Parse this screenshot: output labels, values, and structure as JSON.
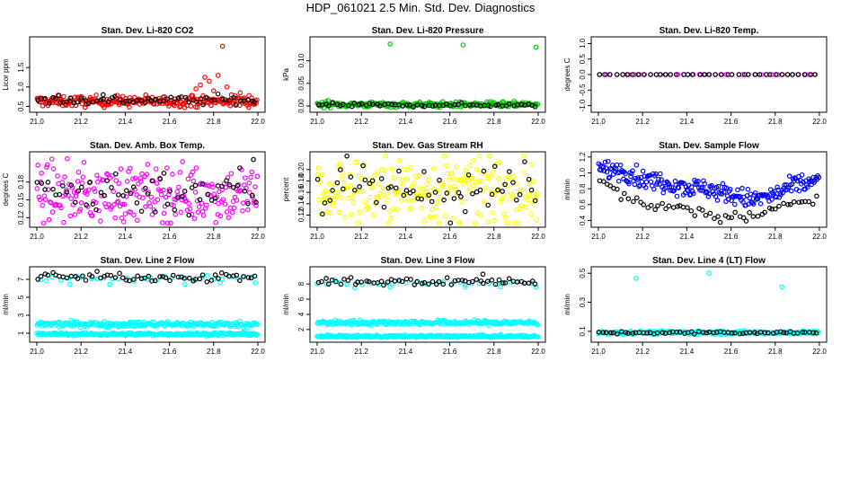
{
  "figure": {
    "title": "HDP_061021  2.5 Min. Std. Dev. Diagnostics"
  },
  "chart_data": [
    {
      "type": "scatter",
      "title": "Stan. Dev. Li-820 CO2",
      "ylabel": "Licor ppm",
      "xlim": [
        21.0,
        22.0
      ],
      "ylim": [
        0.44,
        2.2
      ],
      "xticks": [
        "21.0",
        "21.2",
        "21.4",
        "21.6",
        "21.8",
        "22.0"
      ],
      "yticks": [
        "0.5",
        "1.0",
        "1.5"
      ],
      "series": [
        {
          "name": "red",
          "color": "#ff0000",
          "baseline": 0.63,
          "jitter": 0.07,
          "points": [
            [
              21.72,
              0.95
            ],
            [
              21.74,
              1.05
            ],
            [
              21.76,
              1.25
            ],
            [
              21.78,
              1.15
            ],
            [
              21.8,
              0.9
            ],
            [
              21.82,
              1.3
            ],
            [
              21.84,
              2.05
            ],
            [
              21.86,
              1.0
            ],
            [
              21.88,
              0.8
            ],
            [
              21.92,
              0.85
            ],
            [
              21.7,
              0.78
            ],
            [
              21.96,
              0.78
            ]
          ]
        },
        {
          "name": "black",
          "color": "#000000",
          "baseline": 0.66,
          "jitter": 0.06,
          "points": [
            [
              21.3,
              0.8
            ],
            [
              21.1,
              0.78
            ]
          ]
        }
      ]
    },
    {
      "type": "scatter",
      "title": "Stan. Dev. Li-820 Pressure",
      "ylabel": "kPa",
      "xlim": [
        21.0,
        22.0
      ],
      "ylim": [
        -0.006,
        0.145
      ],
      "xticks": [
        "21.0",
        "21.2",
        "21.4",
        "21.6",
        "21.8",
        "22.0"
      ],
      "yticks": [
        "0.00",
        "0.05",
        "0.10"
      ],
      "series": [
        {
          "name": "green",
          "color": "#00c800",
          "baseline": 0.003,
          "jitter": 0.003,
          "points": [
            [
              21.33,
              0.137
            ],
            [
              21.66,
              0.135
            ],
            [
              21.99,
              0.13
            ],
            [
              21.04,
              0.01
            ],
            [
              21.05,
              0.012
            ]
          ]
        },
        {
          "name": "black",
          "color": "#000000",
          "baseline": 0.002,
          "jitter": 0.002,
          "points": []
        }
      ]
    },
    {
      "type": "scatter",
      "title": "Stan. Dev. Li-820 Temp.",
      "ylabel": "degrees C",
      "xlim": [
        21.0,
        22.0
      ],
      "ylim": [
        -1.1,
        1.1
      ],
      "xticks": [
        "21.0",
        "21.2",
        "21.4",
        "21.6",
        "21.8",
        "22.0"
      ],
      "yticks": [
        "-1.0",
        "-0.5",
        "0.0",
        "0.5",
        "1.0"
      ],
      "series": [
        {
          "name": "magenta",
          "color": "#ff00ff",
          "baseline": 0.0,
          "jitter": 0.0,
          "points": []
        },
        {
          "name": "black",
          "color": "#000000",
          "baseline": 0.0,
          "jitter": 0.0,
          "points": []
        }
      ]
    },
    {
      "type": "scatter",
      "title": "Stan. Dev. Amb. Box Temp.",
      "ylabel": "degrees C",
      "xlim": [
        21.0,
        22.0
      ],
      "ylim": [
        0.11,
        0.225
      ],
      "xticks": [
        "21.0",
        "21.2",
        "21.4",
        "21.6",
        "21.8",
        "22.0"
      ],
      "yticks": [
        "0.12",
        "0.15",
        "0.18"
      ],
      "series": [
        {
          "name": "magenta",
          "color": "#ff00ff",
          "baseline": 0.16,
          "jitter": 0.024,
          "points": []
        },
        {
          "name": "black",
          "color": "#000000",
          "baseline": 0.165,
          "jitter": 0.02,
          "points": [
            [
              21.98,
              0.218
            ]
          ]
        }
      ]
    },
    {
      "type": "scatter",
      "title": "Stan. Dev. Gas Stream RH",
      "ylabel": "percent",
      "xlim": [
        21.0,
        22.0
      ],
      "ylim": [
        0.105,
        0.225
      ],
      "xticks": [
        "21.0",
        "21.2",
        "21.4",
        "21.6",
        "21.8",
        "22.0"
      ],
      "yticks": [
        "0.12",
        "0.14",
        "0.16",
        "0.18",
        "0.20"
      ],
      "series": [
        {
          "name": "yellow",
          "color": "#ffff00",
          "baseline": 0.163,
          "jitter": 0.03,
          "points": []
        },
        {
          "name": "black",
          "color": "#000000",
          "baseline": 0.162,
          "jitter": 0.025,
          "points": []
        }
      ]
    },
    {
      "type": "scatter",
      "title": "Stan. Dev. Sample Flow",
      "ylabel": "ml/min",
      "xlim": [
        21.0,
        22.0
      ],
      "ylim": [
        0.36,
        1.22
      ],
      "xticks": [
        "21.0",
        "21.2",
        "21.4",
        "21.6",
        "21.8",
        "22.0"
      ],
      "yticks": [
        "0.4",
        "0.6",
        "0.8",
        "1.0",
        "1.2"
      ],
      "series": [
        {
          "name": "blue",
          "color": "#0000ff",
          "baseline": 0.0,
          "jitter": 0.0,
          "profile": [
            [
              21.0,
              1.05
            ],
            [
              21.1,
              1.04
            ],
            [
              21.2,
              0.92
            ],
            [
              21.3,
              0.88
            ],
            [
              21.4,
              0.82
            ],
            [
              21.5,
              0.8
            ],
            [
              21.6,
              0.72
            ],
            [
              21.7,
              0.66
            ],
            [
              21.8,
              0.72
            ],
            [
              21.9,
              0.86
            ],
            [
              22.0,
              0.9
            ]
          ],
          "spread": 0.06,
          "points": []
        },
        {
          "name": "black",
          "color": "#000000",
          "baseline": 0.0,
          "jitter": 0.0,
          "profile": [
            [
              21.0,
              0.95
            ],
            [
              21.1,
              0.72
            ],
            [
              21.2,
              0.6
            ],
            [
              21.3,
              0.58
            ],
            [
              21.4,
              0.52
            ],
            [
              21.5,
              0.47
            ],
            [
              21.6,
              0.44
            ],
            [
              21.7,
              0.46
            ],
            [
              21.8,
              0.58
            ],
            [
              21.9,
              0.64
            ],
            [
              22.0,
              0.62
            ]
          ],
          "spread": 0.03,
          "points": []
        }
      ]
    },
    {
      "type": "scatter",
      "title": "Stan. Dev. Line 2 Flow",
      "ylabel": "ml/min",
      "xlim": [
        21.0,
        22.0
      ],
      "ylim": [
        0.4,
        8.0
      ],
      "xticks": [
        "21.0",
        "21.2",
        "21.4",
        "21.6",
        "21.8",
        "22.0"
      ],
      "yticks": [
        "1",
        "3",
        "5",
        "7"
      ],
      "series": [
        {
          "name": "cyan-upper",
          "color": "#00ffff",
          "baseline": 7.1,
          "jitter": 0.15,
          "points": [
            [
              21.15,
              6.45
            ],
            [
              21.33,
              6.45
            ],
            [
              21.67,
              6.45
            ],
            [
              21.83,
              6.6
            ],
            [
              21.99,
              6.6
            ],
            [
              21.5,
              7.0
            ]
          ]
        },
        {
          "name": "cyan-mid",
          "color": "#00ffff",
          "baseline": 2.0,
          "jitter": 0.15,
          "points": []
        },
        {
          "name": "cyan-low",
          "color": "#00ffff",
          "baseline": 0.9,
          "jitter": 0.08,
          "points": []
        },
        {
          "name": "black",
          "color": "#000000",
          "baseline": 7.25,
          "jitter": 0.25,
          "points": []
        }
      ]
    },
    {
      "type": "scatter",
      "title": "Stan. Dev. Line 3 Flow",
      "ylabel": "ml/min",
      "xlim": [
        21.0,
        22.0
      ],
      "ylim": [
        0.8,
        9.8
      ],
      "xticks": [
        "21.0",
        "21.2",
        "21.4",
        "21.6",
        "21.8",
        "22.0"
      ],
      "yticks": [
        "2",
        "4",
        "6",
        "8"
      ],
      "series": [
        {
          "name": "cyan-upper",
          "color": "#00ffff",
          "baseline": 8.1,
          "jitter": 0.15,
          "points": [
            [
              21.17,
              7.5
            ],
            [
              21.33,
              7.6
            ],
            [
              21.67,
              7.6
            ],
            [
              21.83,
              7.6
            ],
            [
              21.99,
              7.6
            ]
          ]
        },
        {
          "name": "cyan-mid",
          "color": "#00ffff",
          "baseline": 2.9,
          "jitter": 0.15,
          "points": []
        },
        {
          "name": "cyan-low",
          "color": "#00ffff",
          "baseline": 1.1,
          "jitter": 0.08,
          "points": []
        },
        {
          "name": "black",
          "color": "#000000",
          "baseline": 8.3,
          "jitter": 0.25,
          "points": [
            [
              21.75,
              9.3
            ]
          ]
        }
      ]
    },
    {
      "type": "scatter",
      "title": "Stan. Dev. Line 4 (LT) Flow",
      "ylabel": "ml/min",
      "xlim": [
        21.0,
        22.0
      ],
      "ylim": [
        0.05,
        0.52
      ],
      "xticks": [
        "21.0",
        "21.2",
        "21.4",
        "21.6",
        "21.8",
        "22.0"
      ],
      "yticks": [
        "0.1",
        "0.3",
        "0.5"
      ],
      "series": [
        {
          "name": "cyan",
          "color": "#00ffff",
          "baseline": 0.092,
          "jitter": 0.006,
          "points": [
            [
              21.17,
              0.465
            ],
            [
              21.5,
              0.5
            ],
            [
              21.83,
              0.405
            ]
          ]
        },
        {
          "name": "black",
          "color": "#000000",
          "baseline": 0.09,
          "jitter": 0.005,
          "points": []
        }
      ]
    }
  ]
}
